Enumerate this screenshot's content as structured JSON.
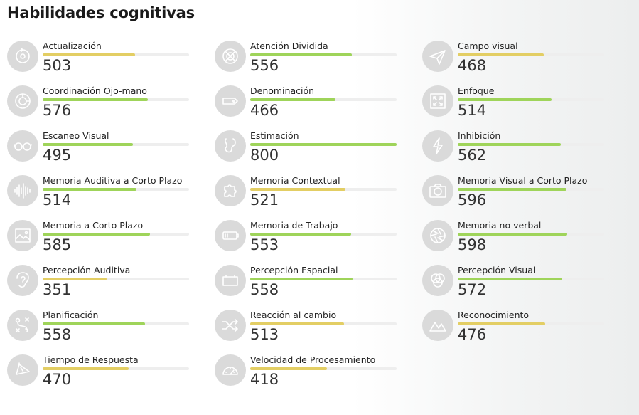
{
  "title": "Habilidades cognitivas",
  "colors": {
    "yellow": "#e3ce64",
    "green": "#9fd45a",
    "icon_bg": "#dadada"
  },
  "scale_max": 800,
  "skills": [
    {
      "label": "Actualización",
      "score": "503",
      "value": 503,
      "color": "yellow",
      "icon": "refresh-icon"
    },
    {
      "label": "Coordinación Ojo-mano",
      "score": "576",
      "value": 576,
      "color": "green",
      "icon": "target-icon"
    },
    {
      "label": "Escaneo Visual",
      "score": "495",
      "value": 495,
      "color": "green",
      "icon": "glasses-icon"
    },
    {
      "label": "Memoria Auditiva a Corto Plazo",
      "score": "514",
      "value": 514,
      "color": "green",
      "icon": "soundwave-icon"
    },
    {
      "label": "Memoria a Corto Plazo",
      "score": "585",
      "value": 585,
      "color": "green",
      "icon": "picture-icon"
    },
    {
      "label": "Percepción Auditiva",
      "score": "351",
      "value": 351,
      "color": "yellow",
      "icon": "ear-icon"
    },
    {
      "label": "Planificación",
      "score": "558",
      "value": 558,
      "color": "green",
      "icon": "strategy-icon"
    },
    {
      "label": "Tiempo de Respuesta",
      "score": "470",
      "value": 470,
      "color": "yellow",
      "icon": "stopwatch-icon"
    },
    {
      "label": "Atención Dividida",
      "score": "556",
      "value": 556,
      "color": "green",
      "icon": "crosshair-icon"
    },
    {
      "label": "Denominación",
      "score": "466",
      "value": 466,
      "color": "green",
      "icon": "tag-icon"
    },
    {
      "label": "Estimación",
      "score": "800",
      "value": 800,
      "color": "green",
      "icon": "path-icon"
    },
    {
      "label": "Memoria Contextual",
      "score": "521",
      "value": 521,
      "color": "yellow",
      "icon": "puzzle-icon"
    },
    {
      "label": "Memoria de Trabajo",
      "score": "553",
      "value": 553,
      "color": "green",
      "icon": "battery-icon"
    },
    {
      "label": "Percepción Espacial",
      "score": "558",
      "value": 558,
      "color": "green",
      "icon": "box-icon"
    },
    {
      "label": "Reacción al cambio",
      "score": "513",
      "value": 513,
      "color": "yellow",
      "icon": "shuffle-icon"
    },
    {
      "label": "Velocidad de Procesamiento",
      "score": "418",
      "value": 418,
      "color": "yellow",
      "icon": "speedometer-icon"
    },
    {
      "label": "Campo visual",
      "score": "468",
      "value": 468,
      "color": "yellow",
      "icon": "paper-plane-icon"
    },
    {
      "label": "Enfoque",
      "score": "514",
      "value": 514,
      "color": "green",
      "icon": "focus-icon"
    },
    {
      "label": "Inhibición",
      "score": "562",
      "value": 562,
      "color": "green",
      "icon": "lightning-icon"
    },
    {
      "label": "Memoria Visual a Corto Plazo",
      "score": "596",
      "value": 596,
      "color": "green",
      "icon": "camera-icon"
    },
    {
      "label": "Memoria no verbal",
      "score": "598",
      "value": 598,
      "color": "green",
      "icon": "aperture-icon"
    },
    {
      "label": "Percepción Visual",
      "score": "572",
      "value": 572,
      "color": "green",
      "icon": "circles-icon"
    },
    {
      "label": "Reconocimiento",
      "score": "476",
      "value": 476,
      "color": "yellow",
      "icon": "mountains-icon"
    }
  ]
}
